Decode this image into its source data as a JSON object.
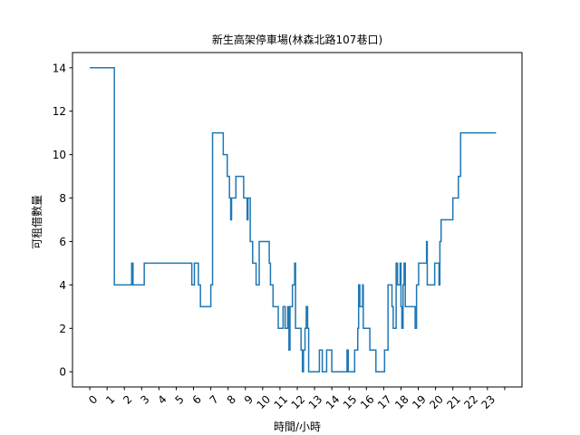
{
  "chart_data": {
    "type": "line",
    "title": "新生高架停車場(林森北路107巷口)",
    "xlabel": "時間/小時",
    "ylabel": "可租借數量",
    "xlim": [
      -1,
      25
    ],
    "ylim": [
      -0.7,
      14.7
    ],
    "x_ticks": [
      {
        "value": 0,
        "label": "0"
      },
      {
        "value": 1,
        "label": "1"
      },
      {
        "value": 2,
        "label": "2"
      },
      {
        "value": 3,
        "label": "3"
      },
      {
        "value": 4,
        "label": "4"
      },
      {
        "value": 5,
        "label": "5"
      },
      {
        "value": 6,
        "label": "6"
      },
      {
        "value": 7,
        "label": "7"
      },
      {
        "value": 8,
        "label": "8"
      },
      {
        "value": 9,
        "label": "9"
      },
      {
        "value": 10,
        "label": "10"
      },
      {
        "value": 11,
        "label": "11"
      },
      {
        "value": 12,
        "label": "12"
      },
      {
        "value": 13,
        "label": "13"
      },
      {
        "value": 14,
        "label": "14"
      },
      {
        "value": 15,
        "label": "15"
      },
      {
        "value": 16,
        "label": "16"
      },
      {
        "value": 17,
        "label": "17"
      },
      {
        "value": 18,
        "label": "18"
      },
      {
        "value": 19,
        "label": "19"
      },
      {
        "value": 20,
        "label": "20"
      },
      {
        "value": 21,
        "label": "21"
      },
      {
        "value": 22,
        "label": "22"
      },
      {
        "value": 23,
        "label": "23"
      },
      {
        "value": 24,
        "label": ""
      }
    ],
    "y_ticks": [
      0,
      2,
      4,
      6,
      8,
      10,
      12,
      14
    ],
    "grid": false,
    "color": "#1f77b4",
    "series": [
      {
        "points": [
          [
            0.0,
            14
          ],
          [
            1.42,
            14
          ],
          [
            1.42,
            4
          ],
          [
            2.42,
            4
          ],
          [
            2.42,
            5
          ],
          [
            2.5,
            5
          ],
          [
            2.5,
            4
          ],
          [
            3.15,
            4
          ],
          [
            3.15,
            5
          ],
          [
            5.9,
            5
          ],
          [
            5.9,
            4
          ],
          [
            6.05,
            4
          ],
          [
            6.05,
            5
          ],
          [
            6.28,
            5
          ],
          [
            6.28,
            4
          ],
          [
            6.4,
            4
          ],
          [
            6.4,
            3
          ],
          [
            7.0,
            3
          ],
          [
            7.0,
            4
          ],
          [
            7.1,
            4
          ],
          [
            7.1,
            11
          ],
          [
            7.72,
            11
          ],
          [
            7.72,
            10
          ],
          [
            7.95,
            10
          ],
          [
            7.95,
            9
          ],
          [
            8.08,
            9
          ],
          [
            8.08,
            8
          ],
          [
            8.15,
            8
          ],
          [
            8.15,
            7
          ],
          [
            8.2,
            7
          ],
          [
            8.2,
            8
          ],
          [
            8.45,
            8
          ],
          [
            8.45,
            9
          ],
          [
            8.9,
            9
          ],
          [
            8.9,
            8
          ],
          [
            9.1,
            8
          ],
          [
            9.1,
            7
          ],
          [
            9.15,
            7
          ],
          [
            9.15,
            8
          ],
          [
            9.28,
            8
          ],
          [
            9.28,
            6
          ],
          [
            9.42,
            6
          ],
          [
            9.42,
            5
          ],
          [
            9.62,
            5
          ],
          [
            9.62,
            4
          ],
          [
            9.8,
            4
          ],
          [
            9.8,
            6
          ],
          [
            10.38,
            6
          ],
          [
            10.38,
            5
          ],
          [
            10.45,
            5
          ],
          [
            10.45,
            4
          ],
          [
            10.6,
            4
          ],
          [
            10.6,
            3
          ],
          [
            10.9,
            3
          ],
          [
            10.9,
            2
          ],
          [
            11.18,
            2
          ],
          [
            11.18,
            3
          ],
          [
            11.3,
            3
          ],
          [
            11.3,
            2
          ],
          [
            11.45,
            2
          ],
          [
            11.45,
            3
          ],
          [
            11.52,
            3
          ],
          [
            11.52,
            1
          ],
          [
            11.58,
            1
          ],
          [
            11.58,
            3
          ],
          [
            11.72,
            3
          ],
          [
            11.72,
            4
          ],
          [
            11.85,
            4
          ],
          [
            11.85,
            5
          ],
          [
            11.9,
            5
          ],
          [
            11.9,
            2
          ],
          [
            12.22,
            2
          ],
          [
            12.22,
            1
          ],
          [
            12.3,
            1
          ],
          [
            12.3,
            0
          ],
          [
            12.36,
            0
          ],
          [
            12.36,
            1
          ],
          [
            12.45,
            1
          ],
          [
            12.45,
            2
          ],
          [
            12.52,
            2
          ],
          [
            12.52,
            3
          ],
          [
            12.6,
            3
          ],
          [
            12.6,
            2
          ],
          [
            12.66,
            2
          ],
          [
            12.66,
            0
          ],
          [
            13.28,
            0
          ],
          [
            13.28,
            1
          ],
          [
            13.45,
            1
          ],
          [
            13.45,
            0
          ],
          [
            13.7,
            0
          ],
          [
            13.7,
            1
          ],
          [
            14.0,
            1
          ],
          [
            14.0,
            0
          ],
          [
            14.88,
            0
          ],
          [
            14.88,
            1
          ],
          [
            14.95,
            1
          ],
          [
            14.95,
            0
          ],
          [
            15.32,
            0
          ],
          [
            15.32,
            1
          ],
          [
            15.5,
            1
          ],
          [
            15.5,
            2
          ],
          [
            15.55,
            2
          ],
          [
            15.55,
            4
          ],
          [
            15.62,
            4
          ],
          [
            15.62,
            3
          ],
          [
            15.78,
            3
          ],
          [
            15.78,
            4
          ],
          [
            15.82,
            4
          ],
          [
            15.82,
            2
          ],
          [
            16.2,
            2
          ],
          [
            16.2,
            1
          ],
          [
            16.55,
            1
          ],
          [
            16.55,
            0
          ],
          [
            17.05,
            0
          ],
          [
            17.05,
            1
          ],
          [
            17.25,
            1
          ],
          [
            17.25,
            4
          ],
          [
            17.48,
            4
          ],
          [
            17.48,
            3
          ],
          [
            17.55,
            3
          ],
          [
            17.55,
            2
          ],
          [
            17.72,
            2
          ],
          [
            17.72,
            5
          ],
          [
            17.8,
            5
          ],
          [
            17.8,
            4
          ],
          [
            17.95,
            4
          ],
          [
            17.95,
            5
          ],
          [
            18.0,
            5
          ],
          [
            18.0,
            3
          ],
          [
            18.05,
            3
          ],
          [
            18.05,
            2
          ],
          [
            18.12,
            2
          ],
          [
            18.12,
            4
          ],
          [
            18.18,
            4
          ],
          [
            18.18,
            5
          ],
          [
            18.25,
            5
          ],
          [
            18.25,
            3
          ],
          [
            18.82,
            3
          ],
          [
            18.82,
            2
          ],
          [
            18.9,
            2
          ],
          [
            18.9,
            4
          ],
          [
            19.02,
            4
          ],
          [
            19.02,
            5
          ],
          [
            19.48,
            5
          ],
          [
            19.48,
            6
          ],
          [
            19.52,
            6
          ],
          [
            19.52,
            4
          ],
          [
            19.95,
            4
          ],
          [
            19.95,
            5
          ],
          [
            20.2,
            5
          ],
          [
            20.2,
            4
          ],
          [
            20.25,
            4
          ],
          [
            20.25,
            6
          ],
          [
            20.32,
            6
          ],
          [
            20.32,
            7
          ],
          [
            21.0,
            7
          ],
          [
            21.0,
            8
          ],
          [
            21.32,
            8
          ],
          [
            21.32,
            9
          ],
          [
            21.45,
            9
          ],
          [
            21.45,
            11
          ],
          [
            23.5,
            11
          ]
        ]
      }
    ]
  }
}
